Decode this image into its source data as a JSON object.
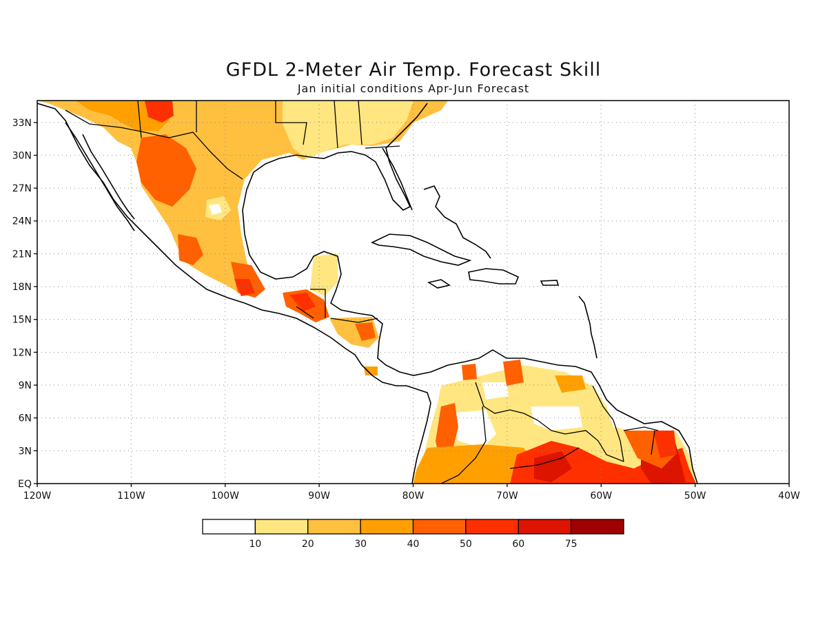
{
  "title": "GFDL 2-Meter Air Temp. Forecast Skill",
  "subtitle": "Jan initial conditions  Apr-Jun Forecast",
  "map": {
    "region": "Central America, Caribbean and northern South America",
    "lon_range": [
      -120,
      -40
    ],
    "lat_range": [
      0,
      35
    ],
    "lat_labels": [
      "EQ",
      "3N",
      "6N",
      "9N",
      "12N",
      "15N",
      "18N",
      "21N",
      "24N",
      "27N",
      "30N",
      "33N"
    ],
    "lat_values": [
      0,
      3,
      6,
      9,
      12,
      15,
      18,
      21,
      24,
      27,
      30,
      33
    ],
    "lon_labels": [
      "120W",
      "110W",
      "100W",
      "90W",
      "80W",
      "70W",
      "60W",
      "50W",
      "40W"
    ],
    "lon_values": [
      -120,
      -110,
      -100,
      -90,
      -80,
      -70,
      -60,
      -50,
      -40
    ],
    "grid": true
  },
  "colorbar": {
    "colors": [
      "#ffffff",
      "#ffe680",
      "#ffc040",
      "#ffa000",
      "#ff6000",
      "#ff3000",
      "#dc1400",
      "#a00000"
    ],
    "labels": [
      "10",
      "20",
      "30",
      "40",
      "50",
      "60",
      "75"
    ]
  }
}
